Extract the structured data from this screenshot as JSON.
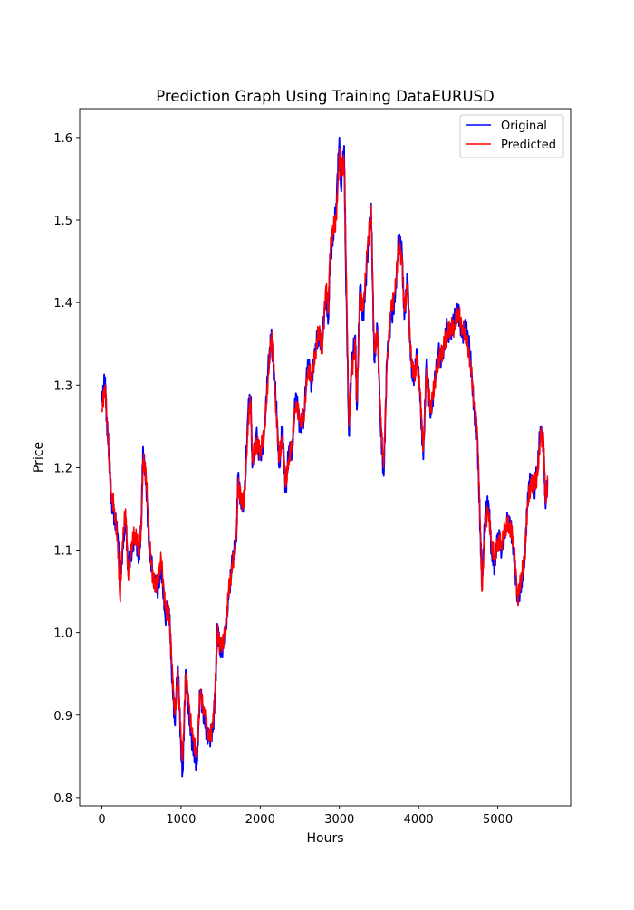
{
  "chart_data": {
    "type": "line",
    "title": "Prediction Graph Using Training DataEURUSD",
    "xlabel": "Hours",
    "ylabel": "Price",
    "xlim": [
      -280,
      5920
    ],
    "ylim": [
      0.79,
      1.635
    ],
    "xticks": [
      0,
      1000,
      2000,
      3000,
      4000,
      5000
    ],
    "yticks": [
      0.8,
      0.9,
      1.0,
      1.1,
      1.2,
      1.3,
      1.4,
      1.5,
      1.6
    ],
    "xtick_labels": [
      "0",
      "1000",
      "2000",
      "3000",
      "4000",
      "5000"
    ],
    "ytick_labels": [
      "0.8",
      "0.9",
      "1.0",
      "1.1",
      "1.2",
      "1.3",
      "1.4",
      "1.5",
      "1.6"
    ],
    "grid": false,
    "legend_position": "top-right",
    "legend": [
      "Original",
      "Predicted"
    ],
    "series": [
      {
        "name": "Original",
        "color": "#0000ff",
        "points": [
          [
            0,
            1.28
          ],
          [
            40,
            1.308
          ],
          [
            60,
            1.26
          ],
          [
            90,
            1.22
          ],
          [
            120,
            1.16
          ],
          [
            160,
            1.14
          ],
          [
            200,
            1.12
          ],
          [
            230,
            1.06
          ],
          [
            260,
            1.1
          ],
          [
            300,
            1.14
          ],
          [
            330,
            1.08
          ],
          [
            380,
            1.1
          ],
          [
            420,
            1.12
          ],
          [
            470,
            1.09
          ],
          [
            500,
            1.14
          ],
          [
            520,
            1.225
          ],
          [
            560,
            1.18
          ],
          [
            600,
            1.1
          ],
          [
            650,
            1.07
          ],
          [
            700,
            1.05
          ],
          [
            750,
            1.08
          ],
          [
            800,
            1.02
          ],
          [
            850,
            1.03
          ],
          [
            880,
            0.96
          ],
          [
            920,
            0.89
          ],
          [
            960,
            0.96
          ],
          [
            1000,
            0.86
          ],
          [
            1020,
            0.83
          ],
          [
            1060,
            0.955
          ],
          [
            1100,
            0.9
          ],
          [
            1150,
            0.86
          ],
          [
            1200,
            0.84
          ],
          [
            1240,
            0.93
          ],
          [
            1300,
            0.89
          ],
          [
            1350,
            0.87
          ],
          [
            1400,
            0.88
          ],
          [
            1430,
            0.92
          ],
          [
            1460,
            1.01
          ],
          [
            1500,
            0.97
          ],
          [
            1560,
            1.0
          ],
          [
            1600,
            1.04
          ],
          [
            1650,
            1.09
          ],
          [
            1700,
            1.11
          ],
          [
            1720,
            1.19
          ],
          [
            1760,
            1.15
          ],
          [
            1800,
            1.16
          ],
          [
            1850,
            1.27
          ],
          [
            1880,
            1.285
          ],
          [
            1900,
            1.2
          ],
          [
            1950,
            1.24
          ],
          [
            2000,
            1.21
          ],
          [
            2050,
            1.24
          ],
          [
            2100,
            1.32
          ],
          [
            2140,
            1.36
          ],
          [
            2160,
            1.33
          ],
          [
            2200,
            1.28
          ],
          [
            2240,
            1.2
          ],
          [
            2280,
            1.25
          ],
          [
            2320,
            1.17
          ],
          [
            2360,
            1.22
          ],
          [
            2400,
            1.22
          ],
          [
            2450,
            1.29
          ],
          [
            2500,
            1.25
          ],
          [
            2550,
            1.26
          ],
          [
            2600,
            1.33
          ],
          [
            2650,
            1.3
          ],
          [
            2700,
            1.35
          ],
          [
            2740,
            1.36
          ],
          [
            2780,
            1.35
          ],
          [
            2830,
            1.41
          ],
          [
            2860,
            1.38
          ],
          [
            2880,
            1.45
          ],
          [
            2920,
            1.48
          ],
          [
            2960,
            1.52
          ],
          [
            3000,
            1.6
          ],
          [
            3020,
            1.54
          ],
          [
            3060,
            1.59
          ],
          [
            3080,
            1.45
          ],
          [
            3120,
            1.24
          ],
          [
            3150,
            1.32
          ],
          [
            3200,
            1.36
          ],
          [
            3220,
            1.27
          ],
          [
            3260,
            1.42
          ],
          [
            3300,
            1.38
          ],
          [
            3350,
            1.45
          ],
          [
            3400,
            1.52
          ],
          [
            3440,
            1.33
          ],
          [
            3480,
            1.37
          ],
          [
            3520,
            1.25
          ],
          [
            3560,
            1.19
          ],
          [
            3600,
            1.33
          ],
          [
            3650,
            1.38
          ],
          [
            3700,
            1.4
          ],
          [
            3750,
            1.48
          ],
          [
            3790,
            1.46
          ],
          [
            3820,
            1.38
          ],
          [
            3860,
            1.43
          ],
          [
            3900,
            1.33
          ],
          [
            3940,
            1.3
          ],
          [
            3980,
            1.34
          ],
          [
            4020,
            1.28
          ],
          [
            4060,
            1.21
          ],
          [
            4100,
            1.33
          ],
          [
            4150,
            1.26
          ],
          [
            4200,
            1.3
          ],
          [
            4250,
            1.34
          ],
          [
            4300,
            1.33
          ],
          [
            4350,
            1.37
          ],
          [
            4400,
            1.36
          ],
          [
            4450,
            1.38
          ],
          [
            4500,
            1.39
          ],
          [
            4550,
            1.36
          ],
          [
            4600,
            1.37
          ],
          [
            4650,
            1.34
          ],
          [
            4700,
            1.27
          ],
          [
            4740,
            1.24
          ],
          [
            4780,
            1.12
          ],
          [
            4800,
            1.06
          ],
          [
            4840,
            1.14
          ],
          [
            4880,
            1.16
          ],
          [
            4920,
            1.1
          ],
          [
            4960,
            1.08
          ],
          [
            5000,
            1.12
          ],
          [
            5050,
            1.1
          ],
          [
            5100,
            1.13
          ],
          [
            5150,
            1.14
          ],
          [
            5200,
            1.1
          ],
          [
            5250,
            1.04
          ],
          [
            5300,
            1.06
          ],
          [
            5340,
            1.09
          ],
          [
            5380,
            1.17
          ],
          [
            5420,
            1.19
          ],
          [
            5460,
            1.17
          ],
          [
            5500,
            1.2
          ],
          [
            5540,
            1.25
          ],
          [
            5580,
            1.22
          ],
          [
            5600,
            1.16
          ],
          [
            5630,
            1.18
          ]
        ]
      },
      {
        "name": "Predicted",
        "color": "#ff0000",
        "points": [
          [
            0,
            1.27
          ],
          [
            40,
            1.3
          ],
          [
            60,
            1.27
          ],
          [
            90,
            1.21
          ],
          [
            120,
            1.17
          ],
          [
            160,
            1.15
          ],
          [
            200,
            1.11
          ],
          [
            230,
            1.04
          ],
          [
            260,
            1.11
          ],
          [
            300,
            1.15
          ],
          [
            330,
            1.07
          ],
          [
            380,
            1.11
          ],
          [
            420,
            1.12
          ],
          [
            470,
            1.1
          ],
          [
            500,
            1.13
          ],
          [
            520,
            1.21
          ],
          [
            560,
            1.19
          ],
          [
            600,
            1.11
          ],
          [
            650,
            1.06
          ],
          [
            700,
            1.06
          ],
          [
            750,
            1.09
          ],
          [
            800,
            1.03
          ],
          [
            850,
            1.02
          ],
          [
            880,
            0.97
          ],
          [
            920,
            0.9
          ],
          [
            960,
            0.95
          ],
          [
            1000,
            0.87
          ],
          [
            1020,
            0.845
          ],
          [
            1060,
            0.95
          ],
          [
            1100,
            0.91
          ],
          [
            1150,
            0.87
          ],
          [
            1200,
            0.85
          ],
          [
            1240,
            0.925
          ],
          [
            1300,
            0.9
          ],
          [
            1350,
            0.87
          ],
          [
            1400,
            0.885
          ],
          [
            1430,
            0.93
          ],
          [
            1460,
            1.0
          ],
          [
            1500,
            0.98
          ],
          [
            1560,
            1.0
          ],
          [
            1600,
            1.05
          ],
          [
            1650,
            1.08
          ],
          [
            1700,
            1.12
          ],
          [
            1720,
            1.18
          ],
          [
            1760,
            1.16
          ],
          [
            1800,
            1.16
          ],
          [
            1850,
            1.26
          ],
          [
            1880,
            1.28
          ],
          [
            1900,
            1.21
          ],
          [
            1950,
            1.23
          ],
          [
            2000,
            1.22
          ],
          [
            2050,
            1.24
          ],
          [
            2100,
            1.31
          ],
          [
            2140,
            1.36
          ],
          [
            2160,
            1.34
          ],
          [
            2200,
            1.27
          ],
          [
            2240,
            1.21
          ],
          [
            2280,
            1.24
          ],
          [
            2320,
            1.18
          ],
          [
            2360,
            1.21
          ],
          [
            2400,
            1.23
          ],
          [
            2450,
            1.28
          ],
          [
            2500,
            1.26
          ],
          [
            2550,
            1.26
          ],
          [
            2600,
            1.32
          ],
          [
            2650,
            1.31
          ],
          [
            2700,
            1.34
          ],
          [
            2740,
            1.37
          ],
          [
            2780,
            1.34
          ],
          [
            2830,
            1.42
          ],
          [
            2860,
            1.39
          ],
          [
            2880,
            1.46
          ],
          [
            2920,
            1.49
          ],
          [
            2960,
            1.5
          ],
          [
            3000,
            1.58
          ],
          [
            3020,
            1.56
          ],
          [
            3060,
            1.57
          ],
          [
            3080,
            1.47
          ],
          [
            3120,
            1.25
          ],
          [
            3150,
            1.31
          ],
          [
            3200,
            1.35
          ],
          [
            3220,
            1.28
          ],
          [
            3260,
            1.41
          ],
          [
            3300,
            1.39
          ],
          [
            3350,
            1.46
          ],
          [
            3400,
            1.515
          ],
          [
            3440,
            1.34
          ],
          [
            3480,
            1.36
          ],
          [
            3520,
            1.26
          ],
          [
            3560,
            1.2
          ],
          [
            3600,
            1.32
          ],
          [
            3650,
            1.39
          ],
          [
            3700,
            1.41
          ],
          [
            3750,
            1.47
          ],
          [
            3790,
            1.45
          ],
          [
            3820,
            1.39
          ],
          [
            3860,
            1.42
          ],
          [
            3900,
            1.34
          ],
          [
            3940,
            1.31
          ],
          [
            3980,
            1.33
          ],
          [
            4020,
            1.29
          ],
          [
            4060,
            1.22
          ],
          [
            4100,
            1.32
          ],
          [
            4150,
            1.27
          ],
          [
            4200,
            1.3
          ],
          [
            4250,
            1.33
          ],
          [
            4300,
            1.34
          ],
          [
            4350,
            1.36
          ],
          [
            4400,
            1.37
          ],
          [
            4450,
            1.37
          ],
          [
            4500,
            1.39
          ],
          [
            4550,
            1.37
          ],
          [
            4600,
            1.36
          ],
          [
            4650,
            1.33
          ],
          [
            4700,
            1.28
          ],
          [
            4740,
            1.25
          ],
          [
            4780,
            1.13
          ],
          [
            4800,
            1.05
          ],
          [
            4840,
            1.13
          ],
          [
            4880,
            1.15
          ],
          [
            4920,
            1.11
          ],
          [
            4960,
            1.09
          ],
          [
            5000,
            1.11
          ],
          [
            5050,
            1.11
          ],
          [
            5100,
            1.13
          ],
          [
            5150,
            1.13
          ],
          [
            5200,
            1.11
          ],
          [
            5250,
            1.04
          ],
          [
            5300,
            1.07
          ],
          [
            5340,
            1.09
          ],
          [
            5380,
            1.16
          ],
          [
            5420,
            1.18
          ],
          [
            5460,
            1.18
          ],
          [
            5500,
            1.19
          ],
          [
            5540,
            1.24
          ],
          [
            5580,
            1.23
          ],
          [
            5600,
            1.16
          ],
          [
            5630,
            1.18
          ]
        ]
      }
    ]
  }
}
